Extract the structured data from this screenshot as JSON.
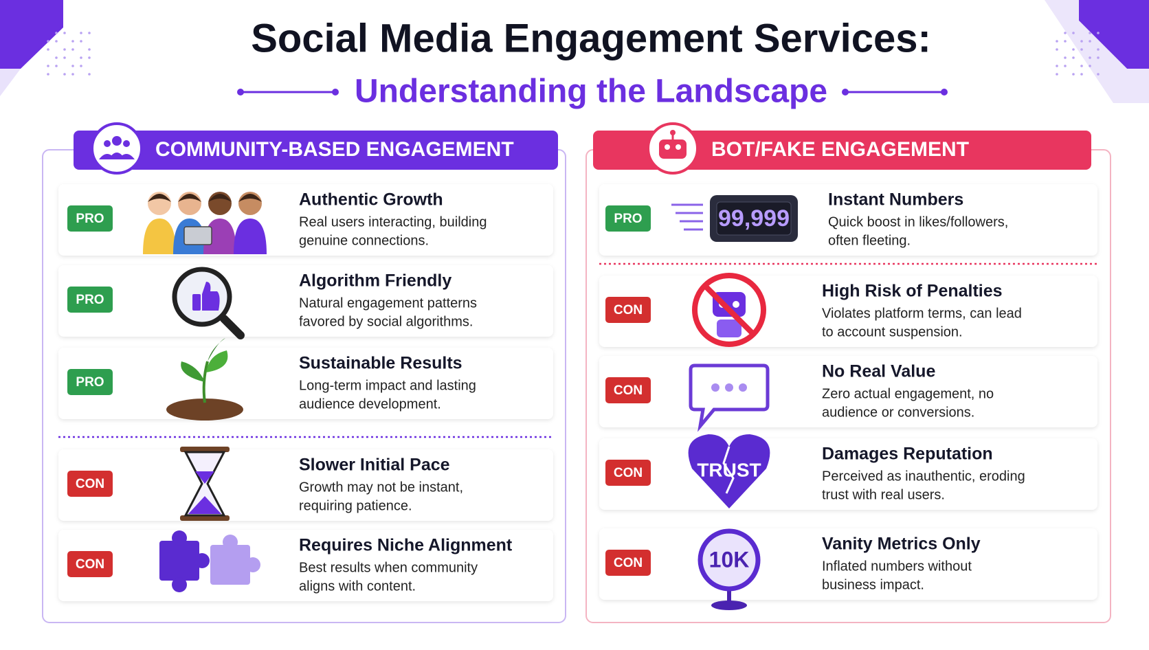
{
  "header": {
    "title": "Social Media Engagement Services:",
    "subtitle": "Understanding the Landscape"
  },
  "panels": [
    {
      "title": "COMMUNITY-BASED ENGAGEMENT",
      "items": [
        {
          "badge": "PRO",
          "title": "Authentic Growth",
          "lines": [
            "Real users interacting, building",
            "genuine connections."
          ]
        },
        {
          "badge": "PRO",
          "title": "Algorithm Friendly",
          "lines": [
            "Natural engagement patterns",
            "favored by social algorithms."
          ]
        },
        {
          "badge": "PRO",
          "title": "Sustainable Results",
          "lines": [
            "Long-term impact and lasting",
            "audience development."
          ]
        },
        {
          "badge": "CON",
          "title": "Slower Initial Pace",
          "lines": [
            "Growth may not be instant,",
            "requiring patience."
          ]
        },
        {
          "badge": "CON",
          "title": "Requires Niche Alignment",
          "lines": [
            "Best results when community",
            "aligns with content."
          ]
        }
      ]
    },
    {
      "title": "BOT/FAKE ENGAGEMENT",
      "items": [
        {
          "badge": "PRO",
          "title": "Instant Numbers",
          "lines": [
            "Quick boost in likes/followers,",
            "often fleeting."
          ],
          "icon_text": "99,999"
        },
        {
          "badge": "CON",
          "title": "High Risk of Penalties",
          "lines": [
            "Violates platform terms, can lead",
            "to account suspension."
          ]
        },
        {
          "badge": "CON",
          "title": "No Real Value",
          "lines": [
            "Zero actual engagement, no",
            "audience or conversions."
          ]
        },
        {
          "badge": "CON",
          "title": "Damages Reputation",
          "lines": [
            "Perceived as inauthentic, eroding",
            "trust with real users."
          ],
          "icon_text": "TRUST"
        },
        {
          "badge": "CON",
          "title": "Vanity Metrics Only",
          "lines": [
            "Inflated numbers without",
            "business impact."
          ],
          "icon_text": "10K"
        }
      ]
    }
  ]
}
